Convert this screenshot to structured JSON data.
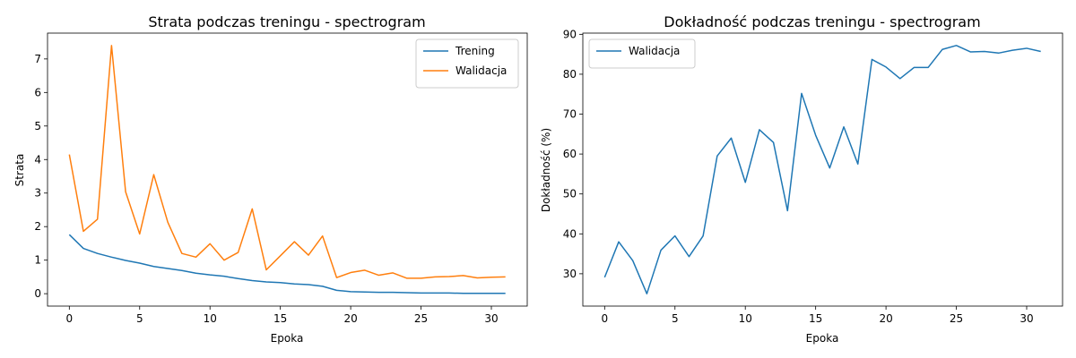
{
  "chart_data": [
    {
      "type": "line",
      "title": "Strata podczas treningu - spectrogram",
      "xlabel": "Epoka",
      "ylabel": "Strata",
      "xlim": [
        -1.55,
        32.55
      ],
      "ylim": [
        -0.37,
        7.77
      ],
      "xticks": [
        0,
        5,
        10,
        15,
        20,
        25,
        30
      ],
      "yticks": [
        0,
        1,
        2,
        3,
        4,
        5,
        6,
        7
      ],
      "legend": "top-right",
      "x": [
        0,
        1,
        2,
        3,
        4,
        5,
        6,
        7,
        8,
        9,
        10,
        11,
        12,
        13,
        14,
        15,
        16,
        17,
        18,
        19,
        20,
        21,
        22,
        23,
        24,
        25,
        26,
        27,
        28,
        29,
        30,
        31
      ],
      "series": [
        {
          "name": "Trening",
          "color": "#1f77b4",
          "values": [
            1.76,
            1.35,
            1.2,
            1.09,
            0.99,
            0.91,
            0.81,
            0.75,
            0.69,
            0.61,
            0.56,
            0.52,
            0.45,
            0.39,
            0.35,
            0.33,
            0.29,
            0.27,
            0.22,
            0.1,
            0.06,
            0.05,
            0.04,
            0.04,
            0.03,
            0.02,
            0.02,
            0.02,
            0.01,
            0.01,
            0.01,
            0.01
          ]
        },
        {
          "name": "Walidacja",
          "color": "#ff7f0e",
          "values": [
            4.15,
            1.86,
            2.22,
            7.4,
            3.04,
            1.78,
            3.55,
            2.13,
            1.2,
            1.09,
            1.49,
            1.0,
            1.23,
            2.53,
            0.71,
            1.13,
            1.55,
            1.15,
            1.72,
            0.48,
            0.63,
            0.7,
            0.55,
            0.62,
            0.46,
            0.46,
            0.5,
            0.51,
            0.54,
            0.47,
            0.49,
            0.5
          ]
        }
      ]
    },
    {
      "type": "line",
      "title": "Dokładność podczas treningu - spectrogram",
      "xlabel": "Epoka",
      "ylabel": "Dokładność (%)",
      "xlim": [
        -1.55,
        32.55
      ],
      "ylim": [
        21.9,
        90.3
      ],
      "xticks": [
        0,
        5,
        10,
        15,
        20,
        25,
        30
      ],
      "yticks": [
        30,
        40,
        50,
        60,
        70,
        80,
        90
      ],
      "legend": "top-left",
      "x": [
        0,
        1,
        2,
        3,
        4,
        5,
        6,
        7,
        8,
        9,
        10,
        11,
        12,
        13,
        14,
        15,
        16,
        17,
        18,
        19,
        20,
        21,
        22,
        23,
        24,
        25,
        26,
        27,
        28,
        29,
        30,
        31
      ],
      "series": [
        {
          "name": "Walidacja",
          "color": "#1f77b4",
          "values": [
            29.1,
            38.0,
            33.3,
            25.0,
            35.9,
            39.5,
            34.3,
            39.5,
            59.5,
            64.0,
            52.9,
            66.1,
            62.9,
            45.8,
            75.2,
            64.7,
            56.5,
            66.8,
            57.5,
            83.7,
            81.8,
            78.9,
            81.7,
            81.7,
            86.2,
            87.2,
            85.6,
            85.7,
            85.3,
            86.0,
            86.5,
            85.7
          ]
        }
      ]
    }
  ]
}
